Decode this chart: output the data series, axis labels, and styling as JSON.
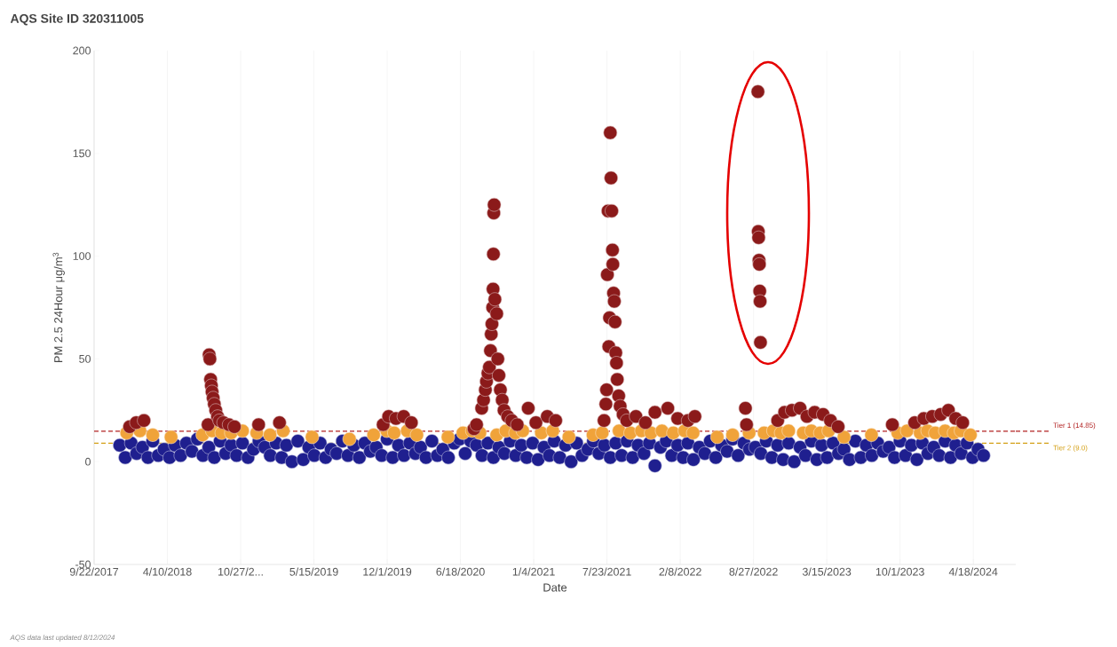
{
  "chart_data": {
    "type": "scatter",
    "title": "AQS Site ID 320311005",
    "xlabel": "Date",
    "ylabel": "PM 2.5 24Hour μg/m$^{3}$",
    "annotations": [
      "AQS data last updated 8/12/2024"
    ],
    "xlim": [
      "2017-09-22",
      "2024-08-12"
    ],
    "ylim": [
      -50,
      200
    ],
    "yticks": [
      -50,
      0,
      50,
      100,
      150,
      200
    ],
    "xticks": [
      {
        "value": "2017-09-22",
        "label": "9/22/2017"
      },
      {
        "value": "2018-04-10",
        "label": "4/10/2018"
      },
      {
        "value": "2018-10-27",
        "label": "10/27/2..."
      },
      {
        "value": "2019-05-15",
        "label": "5/15/2019"
      },
      {
        "value": "2019-12-01",
        "label": "12/1/2019"
      },
      {
        "value": "2020-06-18",
        "label": "6/18/2020"
      },
      {
        "value": "2021-01-04",
        "label": "1/4/2021"
      },
      {
        "value": "2021-07-23",
        "label": "7/23/2021"
      },
      {
        "value": "2022-02-08",
        "label": "2/8/2022"
      },
      {
        "value": "2022-08-27",
        "label": "8/27/2022"
      },
      {
        "value": "2023-03-15",
        "label": "3/15/2023"
      },
      {
        "value": "2023-10-01",
        "label": "10/1/2023"
      },
      {
        "value": "2024-04-18",
        "label": "4/18/2024"
      }
    ],
    "grid": "x",
    "ref_lines": [
      {
        "axis": "y",
        "value": 14.85,
        "label": "Tier 1 (14.85)",
        "color": "#b22222",
        "line_style": "dashed"
      },
      {
        "axis": "y",
        "value": 9.0,
        "label": "Tier 2 (9.0)",
        "color": "#d4a017",
        "line_style": "dashed"
      }
    ],
    "series": [
      {
        "color": "#1f1f8f",
        "x": [
          "2017-12-01",
          "2017-12-16",
          "2018-01-01",
          "2018-01-16",
          "2018-02-01",
          "2018-02-16",
          "2018-03-01",
          "2018-03-16",
          "2018-04-01",
          "2018-04-16",
          "2018-05-01",
          "2018-05-16",
          "2018-06-01",
          "2018-06-16",
          "2018-07-01",
          "2018-07-16",
          "2018-08-01",
          "2018-08-16",
          "2018-09-01",
          "2018-09-16",
          "2018-10-01",
          "2018-10-16",
          "2018-11-01",
          "2018-11-16",
          "2018-12-01",
          "2018-12-16",
          "2019-01-01",
          "2019-01-16",
          "2019-02-01",
          "2019-02-16",
          "2019-03-01",
          "2019-03-16",
          "2019-04-01",
          "2019-04-16",
          "2019-05-01",
          "2019-05-16",
          "2019-06-01",
          "2019-06-16",
          "2019-07-01",
          "2019-07-16",
          "2019-08-01",
          "2019-08-16",
          "2019-09-01",
          "2019-09-16",
          "2019-10-01",
          "2019-10-16",
          "2019-11-01",
          "2019-11-16",
          "2019-12-01",
          "2019-12-16",
          "2020-01-01",
          "2020-01-16",
          "2020-02-01",
          "2020-02-16",
          "2020-03-01",
          "2020-03-16",
          "2020-04-01",
          "2020-04-16",
          "2020-05-01",
          "2020-05-16",
          "2020-06-01",
          "2020-06-16",
          "2020-07-01",
          "2020-07-16",
          "2020-08-01",
          "2020-08-16",
          "2020-09-01",
          "2020-09-16",
          "2020-10-01",
          "2020-10-16",
          "2020-11-01",
          "2020-11-16",
          "2020-12-01",
          "2020-12-16",
          "2021-01-01",
          "2021-01-16",
          "2021-02-01",
          "2021-02-16",
          "2021-03-01",
          "2021-03-16",
          "2021-04-01",
          "2021-04-16",
          "2021-05-01",
          "2021-05-16",
          "2021-06-01",
          "2021-06-16",
          "2021-07-01",
          "2021-07-16",
          "2021-08-01",
          "2021-08-16",
          "2021-09-01",
          "2021-09-16",
          "2021-10-01",
          "2021-10-16",
          "2021-11-01",
          "2021-11-16",
          "2021-12-01",
          "2021-12-16",
          "2022-01-01",
          "2022-01-16",
          "2022-02-01",
          "2022-02-16",
          "2022-03-01",
          "2022-03-16",
          "2022-04-01",
          "2022-04-16",
          "2022-05-01",
          "2022-05-16",
          "2022-06-01",
          "2022-06-16",
          "2022-07-01",
          "2022-07-16",
          "2022-08-01",
          "2022-08-16",
          "2022-09-01",
          "2022-09-16",
          "2022-10-01",
          "2022-10-16",
          "2022-11-01",
          "2022-11-16",
          "2022-12-01",
          "2022-12-16",
          "2023-01-01",
          "2023-01-16",
          "2023-02-01",
          "2023-02-16",
          "2023-03-01",
          "2023-03-16",
          "2023-04-01",
          "2023-04-16",
          "2023-05-01",
          "2023-05-16",
          "2023-06-01",
          "2023-06-16",
          "2023-07-01",
          "2023-07-16",
          "2023-08-01",
          "2023-08-16",
          "2023-09-01",
          "2023-09-16",
          "2023-10-01",
          "2023-10-16",
          "2023-11-01",
          "2023-11-16",
          "2023-12-01",
          "2023-12-16",
          "2024-01-01",
          "2024-01-16",
          "2024-02-01",
          "2024-02-16",
          "2024-03-01",
          "2024-03-16",
          "2024-04-01",
          "2024-04-16",
          "2024-05-01",
          "2024-05-16"
        ],
        "values": [
          8,
          2,
          9,
          4,
          7,
          2,
          10,
          3,
          6,
          2,
          8,
          3,
          9,
          5,
          11,
          3,
          7,
          2,
          10,
          4,
          8,
          3,
          9,
          2,
          6,
          10,
          7,
          3,
          9,
          2,
          8,
          0,
          10,
          1,
          7,
          3,
          9,
          2,
          6,
          4,
          10,
          3,
          8,
          2,
          9,
          5,
          7,
          3,
          11,
          2,
          8,
          3,
          9,
          4,
          7,
          2,
          10,
          3,
          6,
          2,
          9,
          11,
          4,
          10,
          8,
          3,
          9,
          2,
          7,
          4,
          10,
          3,
          8,
          2,
          9,
          1,
          7,
          3,
          10,
          2,
          8,
          0,
          9,
          3,
          6,
          10,
          4,
          8,
          2,
          9,
          3,
          10,
          2,
          8,
          4,
          9,
          -2,
          7,
          10,
          3,
          8,
          2,
          9,
          1,
          7,
          4,
          10,
          2,
          8,
          5,
          11,
          3,
          9,
          6,
          7,
          4,
          10,
          2,
          8,
          1,
          9,
          0,
          7,
          3,
          10,
          1,
          8,
          2,
          9,
          4,
          6,
          1,
          10,
          2,
          8,
          3,
          9,
          5,
          7,
          2,
          10,
          3,
          8,
          1,
          9,
          4,
          7,
          3,
          10,
          2,
          8,
          4,
          9,
          2,
          6,
          3
        ]
      },
      {
        "color": "#f0a33a",
        "x": [
          "2017-12-20",
          "2018-01-25",
          "2018-03-01",
          "2018-04-20",
          "2018-07-15",
          "2018-08-10",
          "2018-09-05",
          "2018-10-01",
          "2018-11-01",
          "2018-12-10",
          "2019-01-15",
          "2019-02-20",
          "2019-05-10",
          "2019-08-20",
          "2019-10-25",
          "2019-11-30",
          "2019-12-20",
          "2020-01-25",
          "2020-02-20",
          "2020-05-15",
          "2020-06-25",
          "2020-07-20",
          "2020-08-10",
          "2020-09-25",
          "2020-10-20",
          "2020-11-15",
          "2020-12-05",
          "2021-01-25",
          "2021-02-25",
          "2021-04-10",
          "2021-06-15",
          "2021-07-10",
          "2021-08-25",
          "2021-09-25",
          "2021-10-25",
          "2021-11-20",
          "2021-12-20",
          "2022-01-20",
          "2022-02-20",
          "2022-03-15",
          "2022-05-20",
          "2022-07-01",
          "2022-08-15",
          "2022-09-25",
          "2022-10-20",
          "2022-11-10",
          "2022-12-01",
          "2023-01-10",
          "2023-02-01",
          "2023-02-25",
          "2023-03-20",
          "2023-05-01",
          "2023-07-15",
          "2023-09-25",
          "2023-10-20",
          "2023-11-25",
          "2023-12-15",
          "2024-01-05",
          "2024-02-01",
          "2024-02-25",
          "2024-03-15",
          "2024-04-10"
        ],
        "values": [
          14,
          15,
          13,
          12,
          13,
          15,
          14,
          14,
          15,
          14,
          13,
          15,
          12,
          11,
          13,
          15,
          14,
          15,
          13,
          12,
          14,
          15,
          14,
          13,
          15,
          14,
          15,
          14,
          15,
          12,
          13,
          14,
          15,
          14,
          15,
          14,
          15,
          14,
          15,
          14,
          12,
          13,
          14,
          14,
          15,
          14,
          15,
          14,
          15,
          14,
          15,
          12,
          13,
          14,
          15,
          14,
          15,
          14,
          15,
          14,
          15,
          13
        ]
      },
      {
        "color": "#8b1a1a",
        "x": [
          "2017-12-28",
          "2018-01-15",
          "2018-02-05",
          "2018-07-30",
          "2018-08-02",
          "2018-08-04",
          "2018-08-06",
          "2018-08-08",
          "2018-08-10",
          "2018-08-13",
          "2018-08-16",
          "2018-08-20",
          "2018-08-25",
          "2018-08-30",
          "2018-09-10",
          "2018-09-25",
          "2018-10-10",
          "2018-12-15",
          "2019-02-10",
          "2019-11-20",
          "2019-12-05",
          "2019-12-25",
          "2020-01-15",
          "2020-02-05",
          "2020-07-25",
          "2020-08-01",
          "2020-08-15",
          "2020-08-20",
          "2020-08-25",
          "2020-08-28",
          "2020-09-01",
          "2020-09-05",
          "2020-09-08",
          "2020-09-10",
          "2020-09-12",
          "2020-09-14",
          "2020-09-15",
          "2020-09-16",
          "2020-09-17",
          "2020-09-18",
          "2020-09-20",
          "2020-09-25",
          "2020-09-28",
          "2020-10-01",
          "2020-10-05",
          "2020-10-10",
          "2020-10-15",
          "2020-10-25",
          "2020-11-05",
          "2020-11-20",
          "2020-12-20",
          "2021-01-10",
          "2021-02-10",
          "2021-03-05",
          "2021-07-15",
          "2021-07-20",
          "2021-07-22",
          "2021-07-24",
          "2021-07-26",
          "2021-07-28",
          "2021-07-30",
          "2021-08-01",
          "2021-08-03",
          "2021-08-05",
          "2021-08-07",
          "2021-08-08",
          "2021-08-10",
          "2021-08-12",
          "2021-08-14",
          "2021-08-16",
          "2021-08-18",
          "2021-08-20",
          "2021-08-24",
          "2021-08-28",
          "2021-09-05",
          "2021-09-15",
          "2021-10-10",
          "2021-11-05",
          "2021-12-01",
          "2022-01-05",
          "2022-02-01",
          "2022-03-01",
          "2022-03-20",
          "2022-08-05",
          "2022-08-08",
          "2022-09-08",
          "2022-09-09",
          "2022-09-10",
          "2022-09-11",
          "2022-09-12",
          "2022-09-13",
          "2022-09-14",
          "2022-09-15",
          "2022-11-01",
          "2022-11-20",
          "2022-12-10",
          "2023-01-01",
          "2023-01-20",
          "2023-02-10",
          "2023-03-05",
          "2023-03-25",
          "2023-04-15",
          "2023-09-10",
          "2023-11-10",
          "2023-12-05",
          "2023-12-28",
          "2024-01-20",
          "2024-02-10",
          "2024-03-01",
          "2024-03-20"
        ],
        "values": [
          17,
          19,
          20,
          18,
          52,
          50,
          40,
          37,
          34,
          31,
          28,
          25,
          22,
          20,
          19,
          18,
          17,
          18,
          19,
          18,
          22,
          21,
          22,
          19,
          16,
          18,
          26,
          30,
          35,
          39,
          43,
          46,
          54,
          62,
          67,
          75,
          84,
          101,
          121,
          125,
          79,
          72,
          50,
          42,
          35,
          30,
          25,
          22,
          20,
          18,
          26,
          19,
          22,
          20,
          20,
          28,
          35,
          91,
          122,
          56,
          70,
          160,
          138,
          122,
          103,
          96,
          82,
          78,
          68,
          53,
          48,
          40,
          32,
          27,
          23,
          20,
          22,
          19,
          24,
          26,
          21,
          20,
          22,
          26,
          18,
          180,
          112,
          109,
          98,
          96,
          83,
          78,
          58,
          20,
          24,
          25,
          26,
          22,
          24,
          23,
          20,
          17,
          18,
          19,
          21,
          22,
          23,
          25,
          21,
          19
        ]
      }
    ]
  }
}
